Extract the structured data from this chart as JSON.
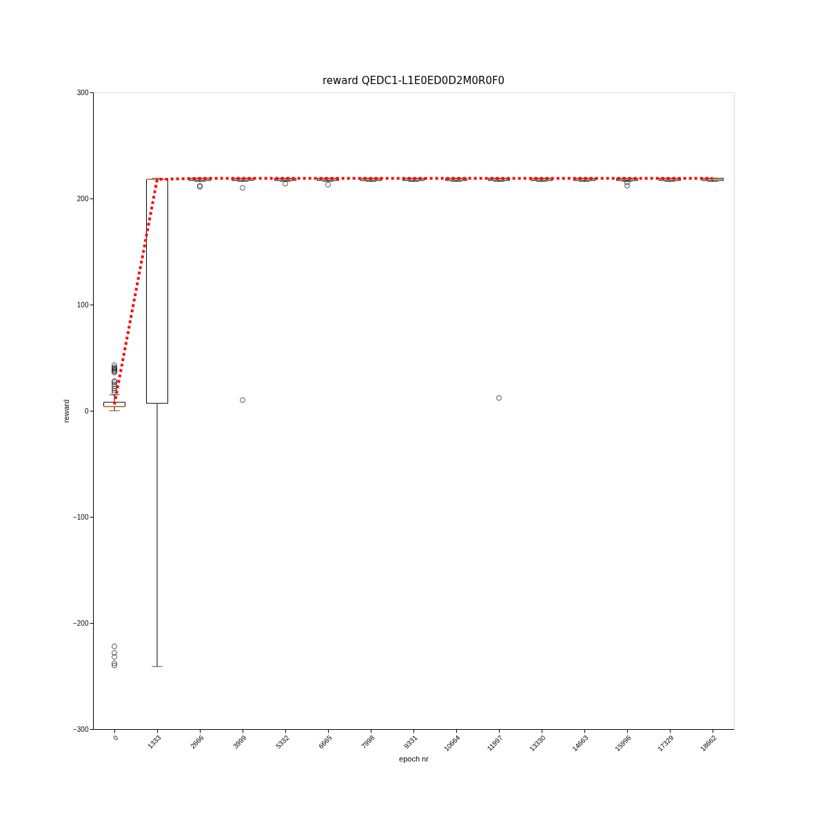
{
  "chart_data": {
    "type": "box",
    "title": "reward QEDC1-L1E0ED0D2M0R0F0",
    "xlabel": "epoch nr",
    "ylabel": "reward",
    "categories": [
      "0",
      "1333",
      "2666",
      "3999",
      "5332",
      "6665",
      "7998",
      "9331",
      "10664",
      "11997",
      "13330",
      "14663",
      "15996",
      "17329",
      "18662"
    ],
    "boxes": [
      {
        "low": 0,
        "q1": 4,
        "median": 4,
        "q3": 8,
        "high": 15,
        "outliers": [
          17,
          19,
          21,
          23,
          25,
          27,
          28,
          36,
          37,
          38,
          39,
          40,
          41,
          43,
          -222,
          -228,
          -232,
          -238,
          -240
        ]
      },
      {
        "low": -241,
        "q1": 7,
        "median": 218,
        "q3": 218,
        "high": 219
      },
      {
        "low": 216,
        "q1": 217,
        "median": 218,
        "q3": 219,
        "high": 219,
        "outliers": [
          211,
          212
        ]
      },
      {
        "low": 216,
        "q1": 217,
        "median": 218,
        "q3": 219,
        "high": 219,
        "outliers": [
          210,
          10
        ]
      },
      {
        "low": 216,
        "q1": 217,
        "median": 218,
        "q3": 219,
        "high": 219,
        "outliers": [
          214
        ]
      },
      {
        "low": 216,
        "q1": 217,
        "median": 218,
        "q3": 219,
        "high": 219,
        "outliers": [
          213
        ]
      },
      {
        "low": 216,
        "q1": 217,
        "median": 218,
        "q3": 219,
        "high": 219
      },
      {
        "low": 216,
        "q1": 217,
        "median": 218,
        "q3": 219,
        "high": 219
      },
      {
        "low": 216,
        "q1": 217,
        "median": 218,
        "q3": 219,
        "high": 219
      },
      {
        "low": 216,
        "q1": 217,
        "median": 218,
        "q3": 219,
        "high": 219,
        "outliers": [
          12
        ]
      },
      {
        "low": 216,
        "q1": 217,
        "median": 218,
        "q3": 219,
        "high": 219
      },
      {
        "low": 216,
        "q1": 217,
        "median": 218,
        "q3": 219,
        "high": 219
      },
      {
        "low": 216,
        "q1": 217,
        "median": 218,
        "q3": 219,
        "high": 219,
        "outliers": [
          212,
          215
        ]
      },
      {
        "low": 216,
        "q1": 217,
        "median": 218,
        "q3": 219,
        "high": 219
      },
      {
        "low": 216,
        "q1": 217,
        "median": 218,
        "q3": 219,
        "high": 219
      }
    ],
    "series": [
      {
        "type": "line",
        "color": "#ff0000",
        "line_style": "dotted",
        "marker": "none",
        "values": [
          6,
          218,
          219,
          219,
          219,
          219,
          219,
          219,
          219,
          219,
          219,
          219,
          219,
          219,
          219
        ]
      }
    ],
    "ylim": [
      -300,
      300
    ],
    "yticks": [
      -300,
      -200,
      -100,
      0,
      100,
      200,
      300
    ],
    "grid": false
  }
}
